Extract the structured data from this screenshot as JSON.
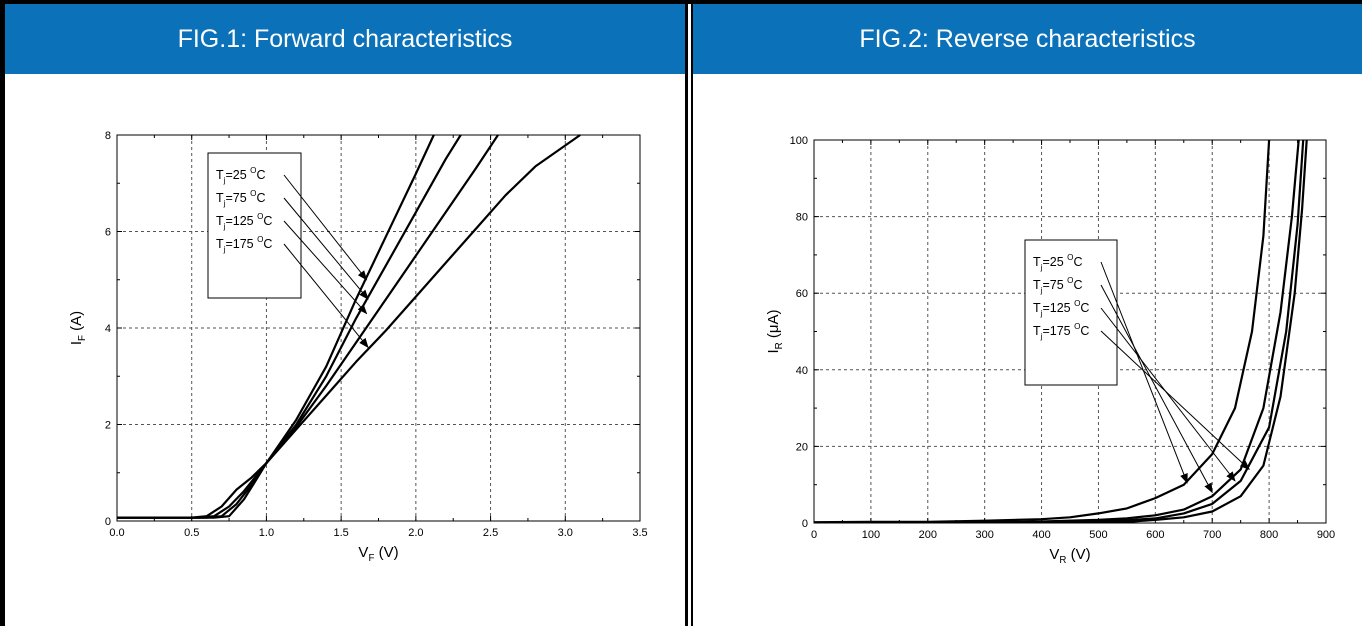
{
  "panels": [
    {
      "title": "FIG.1: Forward characteristics"
    },
    {
      "title": "FIG.2: Reverse characteristics"
    }
  ],
  "chart_data": [
    {
      "type": "line",
      "title": "FIG.1: Forward characteristics",
      "xlabel": "V_F (V)",
      "ylabel": "I_F (A)",
      "x_ticks": [
        "0.0",
        "0.5",
        "1.0",
        "1.5",
        "2.0",
        "2.5",
        "3.0",
        "3.5"
      ],
      "y_ticks": [
        "0",
        "2",
        "4",
        "6",
        "8"
      ],
      "xlim": [
        0,
        3.5
      ],
      "ylim": [
        0,
        8
      ],
      "grid": true,
      "legend": [
        "Tj=25 °C",
        "Tj=75 °C",
        "Tj=125 °C",
        "Tj=175 °C"
      ],
      "legend_position": "top-left",
      "series": [
        {
          "name": "Tj=25 °C",
          "points": [
            [
              0,
              0.07
            ],
            [
              0.5,
              0.07
            ],
            [
              0.6,
              0.1
            ],
            [
              0.7,
              0.3
            ],
            [
              0.8,
              0.65
            ],
            [
              0.9,
              0.9
            ],
            [
              1.0,
              1.2
            ],
            [
              1.2,
              2.1
            ],
            [
              1.4,
              3.2
            ],
            [
              1.6,
              4.6
            ],
            [
              1.8,
              5.9
            ],
            [
              2.0,
              7.2
            ],
            [
              2.12,
              8.0
            ]
          ]
        },
        {
          "name": "Tj=75 °C",
          "points": [
            [
              0,
              0.07
            ],
            [
              0.55,
              0.07
            ],
            [
              0.65,
              0.1
            ],
            [
              0.75,
              0.3
            ],
            [
              0.85,
              0.62
            ],
            [
              1.0,
              1.2
            ],
            [
              1.2,
              2.0
            ],
            [
              1.4,
              3.0
            ],
            [
              1.6,
              4.2
            ],
            [
              1.8,
              5.3
            ],
            [
              2.0,
              6.4
            ],
            [
              2.2,
              7.5
            ],
            [
              2.3,
              8.0
            ]
          ]
        },
        {
          "name": "Tj=125 °C",
          "points": [
            [
              0,
              0.07
            ],
            [
              0.6,
              0.07
            ],
            [
              0.7,
              0.1
            ],
            [
              0.8,
              0.35
            ],
            [
              0.9,
              0.75
            ],
            [
              1.0,
              1.2
            ],
            [
              1.2,
              1.95
            ],
            [
              1.4,
              2.8
            ],
            [
              1.6,
              3.7
            ],
            [
              1.8,
              4.6
            ],
            [
              2.0,
              5.5
            ],
            [
              2.2,
              6.4
            ],
            [
              2.4,
              7.3
            ],
            [
              2.55,
              8.0
            ]
          ]
        },
        {
          "name": "Tj=175 °C",
          "points": [
            [
              0,
              0.07
            ],
            [
              0.65,
              0.07
            ],
            [
              0.75,
              0.1
            ],
            [
              0.85,
              0.45
            ],
            [
              0.95,
              0.95
            ],
            [
              1.0,
              1.2
            ],
            [
              1.2,
              1.9
            ],
            [
              1.4,
              2.6
            ],
            [
              1.6,
              3.3
            ],
            [
              1.8,
              3.95
            ],
            [
              2.0,
              4.65
            ],
            [
              2.2,
              5.35
            ],
            [
              2.4,
              6.05
            ],
            [
              2.6,
              6.75
            ],
            [
              2.8,
              7.35
            ],
            [
              3.1,
              8.0
            ]
          ]
        }
      ]
    },
    {
      "type": "line",
      "title": "FIG.2: Reverse characteristics",
      "xlabel": "V_R (V)",
      "ylabel": "I_R (μA)",
      "x_ticks": [
        "0",
        "100",
        "200",
        "300",
        "400",
        "500",
        "600",
        "700",
        "800",
        "900"
      ],
      "y_ticks": [
        "0",
        "20",
        "40",
        "60",
        "80",
        "100"
      ],
      "xlim": [
        0,
        900
      ],
      "ylim": [
        0,
        100
      ],
      "grid": true,
      "legend": [
        "Tj=25 °C",
        "Tj=75 °C",
        "Tj=125 °C",
        "Tj=175 °C"
      ],
      "legend_position": "center-left",
      "series": [
        {
          "name": "Tj=175 °C",
          "points": [
            [
              0,
              0.2
            ],
            [
              100,
              0.3
            ],
            [
              200,
              0.3
            ],
            [
              300,
              0.6
            ],
            [
              400,
              1.0
            ],
            [
              450,
              1.5
            ],
            [
              500,
              2.5
            ],
            [
              550,
              3.8
            ],
            [
              600,
              6.5
            ],
            [
              650,
              10
            ],
            [
              700,
              18
            ],
            [
              740,
              30
            ],
            [
              770,
              50
            ],
            [
              790,
              75
            ],
            [
              800,
              100
            ]
          ]
        },
        {
          "name": "Tj=125 °C",
          "points": [
            [
              0,
              0.1
            ],
            [
              300,
              0.2
            ],
            [
              400,
              0.4
            ],
            [
              500,
              0.8
            ],
            [
              550,
              1.2
            ],
            [
              600,
              2
            ],
            [
              650,
              3.5
            ],
            [
              700,
              7
            ],
            [
              750,
              14
            ],
            [
              790,
              30
            ],
            [
              820,
              55
            ],
            [
              840,
              80
            ],
            [
              852,
              100
            ]
          ]
        },
        {
          "name": "Tj=75 °C",
          "points": [
            [
              0,
              0.1
            ],
            [
              400,
              0.2
            ],
            [
              500,
              0.4
            ],
            [
              550,
              0.7
            ],
            [
              600,
              1.2
            ],
            [
              650,
              2.5
            ],
            [
              700,
              5
            ],
            [
              750,
              11
            ],
            [
              800,
              25
            ],
            [
              830,
              50
            ],
            [
              850,
              78
            ],
            [
              860,
              100
            ]
          ]
        },
        {
          "name": "Tj=25 °C",
          "points": [
            [
              0,
              0.1
            ],
            [
              450,
              0.1
            ],
            [
              550,
              0.3
            ],
            [
              600,
              0.8
            ],
            [
              650,
              1.5
            ],
            [
              700,
              3
            ],
            [
              750,
              7
            ],
            [
              790,
              15
            ],
            [
              820,
              33
            ],
            [
              845,
              60
            ],
            [
              858,
              82
            ],
            [
              866,
              100
            ]
          ]
        }
      ]
    }
  ]
}
